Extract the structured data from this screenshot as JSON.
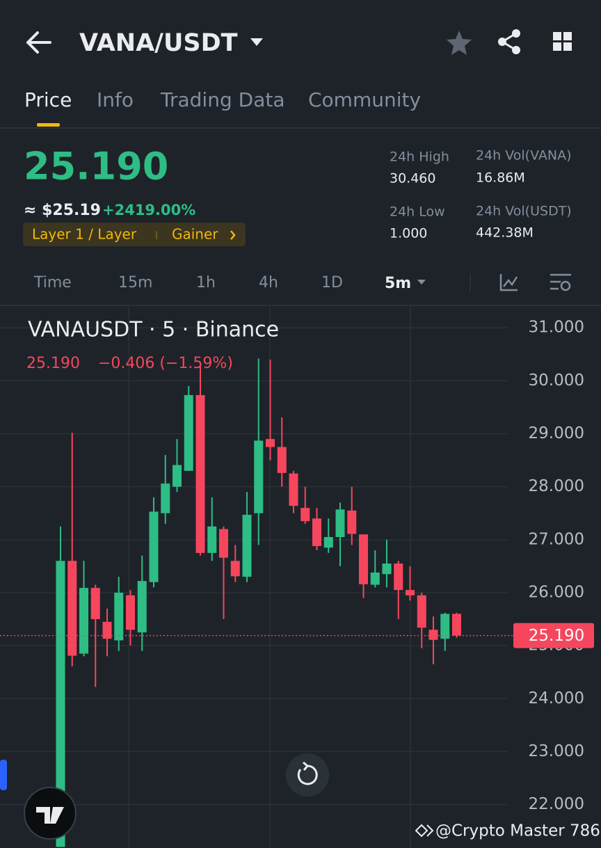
{
  "header": {
    "title": "VANA/USDT"
  },
  "tabs": [
    "Price",
    "Info",
    "Trading Data",
    "Community"
  ],
  "price": {
    "last": "25.190",
    "fiat": "≈ $25.19",
    "change": "+2419.00%",
    "tags": [
      "Layer 1 / Layer",
      "Gainer"
    ]
  },
  "stats": [
    {
      "label": "24h High",
      "value": "30.460"
    },
    {
      "label": "24h Vol(VANA)",
      "value": "16.86M"
    },
    {
      "label": "24h Low",
      "value": "1.000"
    },
    {
      "label": "24h Vol(USDT)",
      "value": "442.38M"
    }
  ],
  "intervals": [
    "Time",
    "15m",
    "1h",
    "4h",
    "1D",
    "5m"
  ],
  "chart_data": {
    "type": "candlestick",
    "title": "VANAUSDT · 5 · Binance",
    "legend_price": "25.190",
    "legend_change": "−0.406 (−1.59%)",
    "up_color": "#2ebd85",
    "down_color": "#f6465d",
    "grid": true,
    "ylim": [
      21.18,
      31.41
    ],
    "yticks": [
      {
        "value": 31,
        "label": "31.000"
      },
      {
        "value": 30,
        "label": "30.000"
      },
      {
        "value": 29,
        "label": "29.000"
      },
      {
        "value": 28,
        "label": "28.000"
      },
      {
        "value": 27,
        "label": "27.000"
      },
      {
        "value": 26,
        "label": "26.000"
      },
      {
        "value": 25,
        "label": "25.000"
      },
      {
        "value": 24,
        "label": "24.000"
      },
      {
        "value": 23,
        "label": "23.000"
      },
      {
        "value": 22,
        "label": "22.000"
      }
    ],
    "last_price": {
      "value": 25.19,
      "label": "25.190"
    },
    "candles": [
      {
        "open": 21.2,
        "high": 27.25,
        "low": 21.2,
        "close": 26.6
      },
      {
        "open": 26.6,
        "high": 29.02,
        "low": 24.61,
        "close": 24.81
      },
      {
        "open": 24.85,
        "high": 26.6,
        "low": 24.8,
        "close": 26.09
      },
      {
        "open": 26.09,
        "high": 26.15,
        "low": 24.22,
        "close": 25.5
      },
      {
        "open": 25.45,
        "high": 25.7,
        "low": 24.8,
        "close": 25.13
      },
      {
        "open": 25.1,
        "high": 26.3,
        "low": 24.9,
        "close": 26.0
      },
      {
        "open": 25.95,
        "high": 26.05,
        "low": 25.0,
        "close": 25.3
      },
      {
        "open": 25.25,
        "high": 26.7,
        "low": 24.9,
        "close": 26.22
      },
      {
        "open": 26.2,
        "high": 27.8,
        "low": 26.1,
        "close": 27.53
      },
      {
        "open": 27.5,
        "high": 28.6,
        "low": 27.3,
        "close": 28.06
      },
      {
        "open": 28.0,
        "high": 28.9,
        "low": 27.9,
        "close": 28.41
      },
      {
        "open": 28.3,
        "high": 29.9,
        "low": 28.3,
        "close": 29.73
      },
      {
        "open": 29.73,
        "high": 30.3,
        "low": 26.7,
        "close": 26.75
      },
      {
        "open": 26.75,
        "high": 27.8,
        "low": 26.6,
        "close": 27.25
      },
      {
        "open": 27.2,
        "high": 27.25,
        "low": 25.5,
        "close": 26.66
      },
      {
        "open": 26.6,
        "high": 26.9,
        "low": 26.2,
        "close": 26.31
      },
      {
        "open": 26.3,
        "high": 27.9,
        "low": 26.2,
        "close": 27.47
      },
      {
        "open": 27.5,
        "high": 30.42,
        "low": 26.9,
        "close": 28.87
      },
      {
        "open": 28.9,
        "high": 30.4,
        "low": 28.5,
        "close": 28.75
      },
      {
        "open": 28.75,
        "high": 29.31,
        "low": 28.0,
        "close": 28.26
      },
      {
        "open": 28.25,
        "high": 28.3,
        "low": 27.5,
        "close": 27.64
      },
      {
        "open": 27.6,
        "high": 28.0,
        "low": 27.3,
        "close": 27.35
      },
      {
        "open": 27.4,
        "high": 27.6,
        "low": 26.8,
        "close": 26.88
      },
      {
        "open": 26.85,
        "high": 27.4,
        "low": 26.75,
        "close": 27.05
      },
      {
        "open": 27.05,
        "high": 27.7,
        "low": 26.5,
        "close": 27.57
      },
      {
        "open": 27.55,
        "high": 28.0,
        "low": 26.9,
        "close": 27.11
      },
      {
        "open": 27.1,
        "high": 27.1,
        "low": 25.9,
        "close": 26.16
      },
      {
        "open": 26.15,
        "high": 26.8,
        "low": 26.1,
        "close": 26.38
      },
      {
        "open": 26.35,
        "high": 27.0,
        "low": 26.1,
        "close": 26.55
      },
      {
        "open": 26.55,
        "high": 26.6,
        "low": 25.5,
        "close": 26.05
      },
      {
        "open": 26.05,
        "high": 26.5,
        "low": 25.85,
        "close": 25.95
      },
      {
        "open": 25.95,
        "high": 26.0,
        "low": 24.95,
        "close": 25.34
      },
      {
        "open": 25.3,
        "high": 25.55,
        "low": 24.65,
        "close": 25.11
      },
      {
        "open": 25.13,
        "high": 25.62,
        "low": 24.9,
        "close": 25.6
      },
      {
        "open": 25.6,
        "high": 25.62,
        "low": 25.15,
        "close": 25.19
      }
    ]
  },
  "watermark": "@Crypto Master 786"
}
